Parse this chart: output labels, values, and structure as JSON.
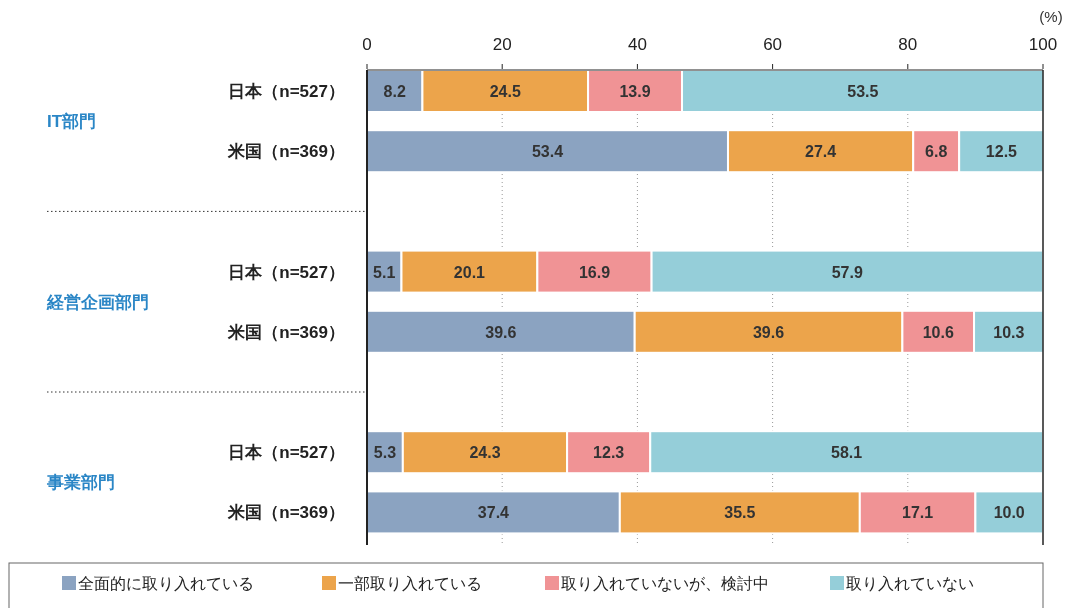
{
  "chart_data": {
    "type": "bar",
    "orientation": "horizontal",
    "stacked": true,
    "categories": [
      "日本（n=527）",
      "米国（n=369）",
      "日本（n=527）",
      "米国（n=369）",
      "日本（n=527）",
      "米国（n=369）"
    ],
    "series": [
      {
        "name": "全面的に取り入れている",
        "color": "#8ba3c1",
        "values": [
          8.2,
          53.4,
          5.1,
          39.6,
          5.3,
          37.4
        ],
        "value_labels": [
          "8.2",
          "53.4",
          "5.1",
          "39.6",
          "5.3",
          "37.4"
        ]
      },
      {
        "name": "一部取り入れている",
        "color": "#eca44b",
        "values": [
          24.5,
          27.4,
          20.1,
          39.6,
          24.3,
          35.5
        ],
        "value_labels": [
          "24.5",
          "27.4",
          "20.1",
          "39.6",
          "24.3",
          "35.5"
        ]
      },
      {
        "name": "取り入れていないが、検討中",
        "color": "#f09395",
        "values": [
          13.9,
          6.8,
          16.9,
          10.6,
          12.3,
          17.1
        ],
        "value_labels": [
          "13.9",
          "6.8",
          "16.9",
          "10.6",
          "12.3",
          "17.1"
        ]
      },
      {
        "name": "取り入れていない",
        "color": "#95ced9",
        "values": [
          53.5,
          12.5,
          57.9,
          10.3,
          58.1,
          10.0
        ],
        "value_labels": [
          "53.5",
          "12.5",
          "57.9",
          "10.3",
          "58.1",
          "10.0"
        ]
      }
    ],
    "xlim": [
      0,
      100
    ],
    "xticks": [
      0,
      20,
      40,
      60,
      80,
      100
    ],
    "xlabel": "(%)",
    "grid": "x",
    "legend": "bottom",
    "annotations": [
      "IT部門",
      "経営企画部門",
      "事業部門"
    ]
  }
}
